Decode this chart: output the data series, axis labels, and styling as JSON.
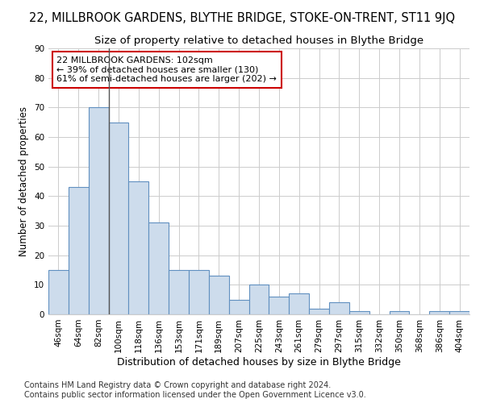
{
  "title": "22, MILLBROOK GARDENS, BLYTHE BRIDGE, STOKE-ON-TRENT, ST11 9JQ",
  "subtitle": "Size of property relative to detached houses in Blythe Bridge",
  "xlabel": "Distribution of detached houses by size in Blythe Bridge",
  "ylabel": "Number of detached properties",
  "footnote1": "Contains HM Land Registry data © Crown copyright and database right 2024.",
  "footnote2": "Contains public sector information licensed under the Open Government Licence v3.0.",
  "categories": [
    "46sqm",
    "64sqm",
    "82sqm",
    "100sqm",
    "118sqm",
    "136sqm",
    "153sqm",
    "171sqm",
    "189sqm",
    "207sqm",
    "225sqm",
    "243sqm",
    "261sqm",
    "279sqm",
    "297sqm",
    "315sqm",
    "332sqm",
    "350sqm",
    "368sqm",
    "386sqm",
    "404sqm"
  ],
  "values": [
    15,
    43,
    70,
    65,
    45,
    31,
    15,
    15,
    13,
    5,
    10,
    6,
    7,
    2,
    4,
    1,
    0,
    1,
    0,
    1,
    1
  ],
  "bar_color": "#cddcec",
  "bar_edge_color": "#6090c0",
  "annotation_text": "22 MILLBROOK GARDENS: 102sqm\n← 39% of detached houses are smaller (130)\n61% of semi-detached houses are larger (202) →",
  "annotation_box_color": "#ffffff",
  "annotation_box_edge": "#cc0000",
  "vline_x": 2.5,
  "vline_color": "#555555",
  "ylim": [
    0,
    90
  ],
  "yticks": [
    0,
    10,
    20,
    30,
    40,
    50,
    60,
    70,
    80,
    90
  ],
  "grid_color": "#cccccc",
  "bg_color": "#ffffff",
  "plot_bg_color": "#ffffff",
  "title_fontsize": 10.5,
  "subtitle_fontsize": 9.5,
  "ylabel_fontsize": 8.5,
  "xlabel_fontsize": 9,
  "tick_fontsize": 7.5,
  "annotation_fontsize": 8,
  "footnote_fontsize": 7
}
